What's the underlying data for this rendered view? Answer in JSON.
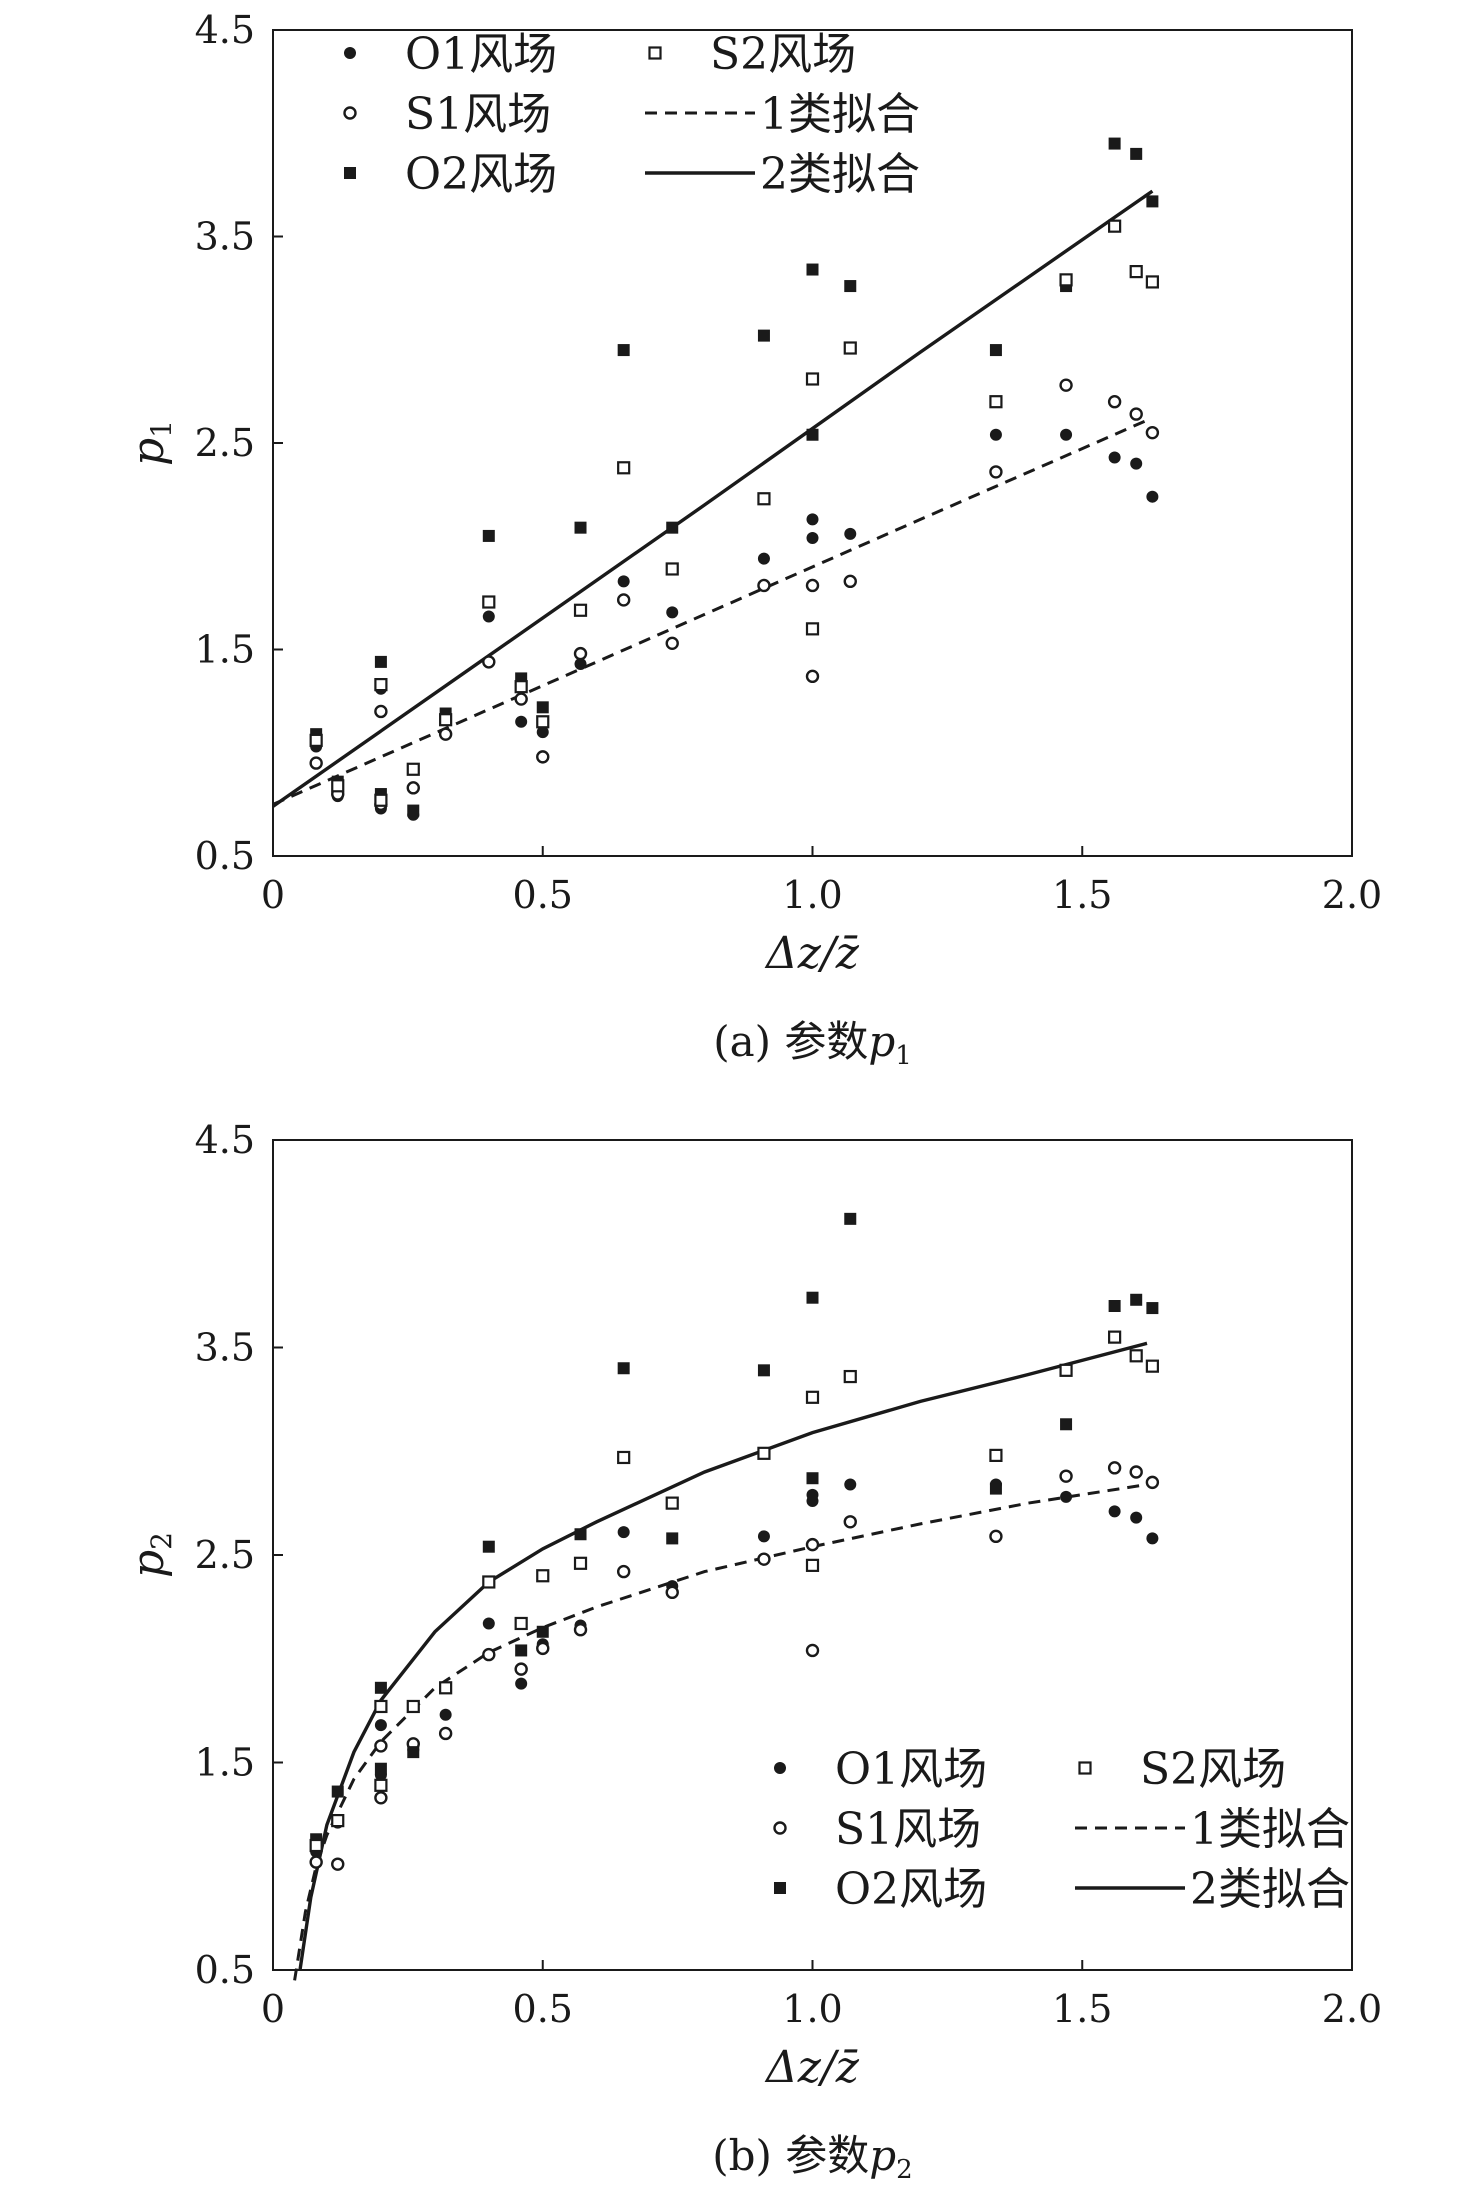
{
  "legend_labels": {
    "o1": "O1风场",
    "s1": "S1风场",
    "o2": "O2风场",
    "s2": "S2风场",
    "fit1": "1类拟合",
    "fit2": "2类拟合"
  },
  "chart_data": [
    {
      "type": "scatter",
      "caption": "(a) 参数",
      "caption_var": "p",
      "caption_sub": "1",
      "ylabel": "p",
      "ylabel_sub": "1",
      "xlabel": "Δz/z̄",
      "xlim": [
        0,
        2.0
      ],
      "ylim": [
        0.5,
        4.5
      ],
      "xticks": [
        "0",
        "0.5",
        "1.0",
        "1.5",
        "2.0"
      ],
      "yticks": [
        "0.5",
        "1.5",
        "2.5",
        "3.5",
        "4.5"
      ],
      "legend_position": "top-left",
      "series": [
        {
          "name": "O1风场",
          "marker": "filled-circle",
          "points": [
            [
              0.08,
              1.03
            ],
            [
              0.12,
              0.79
            ],
            [
              0.2,
              1.31
            ],
            [
              0.2,
              0.73
            ],
            [
              0.26,
              0.7
            ],
            [
              0.32,
              1.16
            ],
            [
              0.4,
              1.66
            ],
            [
              0.46,
              1.15
            ],
            [
              0.5,
              1.1
            ],
            [
              0.57,
              1.43
            ],
            [
              0.65,
              1.83
            ],
            [
              0.74,
              1.68
            ],
            [
              0.91,
              1.94
            ],
            [
              1.0,
              2.13
            ],
            [
              1.0,
              2.04
            ],
            [
              1.07,
              2.06
            ],
            [
              1.34,
              2.54
            ],
            [
              1.47,
              2.54
            ],
            [
              1.56,
              2.43
            ],
            [
              1.6,
              2.4
            ],
            [
              1.63,
              2.24
            ]
          ]
        },
        {
          "name": "S1风场",
          "marker": "open-circle",
          "points": [
            [
              0.08,
              0.95
            ],
            [
              0.12,
              0.8
            ],
            [
              0.2,
              1.2
            ],
            [
              0.2,
              0.75
            ],
            [
              0.26,
              0.83
            ],
            [
              0.32,
              1.09
            ],
            [
              0.4,
              1.44
            ],
            [
              0.46,
              1.26
            ],
            [
              0.5,
              0.98
            ],
            [
              0.57,
              1.48
            ],
            [
              0.65,
              1.74
            ],
            [
              0.74,
              1.53
            ],
            [
              0.91,
              1.81
            ],
            [
              1.0,
              1.81
            ],
            [
              1.0,
              1.37
            ],
            [
              1.07,
              1.83
            ],
            [
              1.34,
              2.36
            ],
            [
              1.47,
              2.78
            ],
            [
              1.56,
              2.7
            ],
            [
              1.6,
              2.64
            ],
            [
              1.63,
              2.55
            ]
          ]
        },
        {
          "name": "O2风场",
          "marker": "filled-square",
          "points": [
            [
              0.08,
              1.09
            ],
            [
              0.12,
              0.86
            ],
            [
              0.2,
              1.44
            ],
            [
              0.2,
              0.8
            ],
            [
              0.26,
              0.72
            ],
            [
              0.32,
              1.19
            ],
            [
              0.4,
              2.05
            ],
            [
              0.46,
              1.36
            ],
            [
              0.5,
              1.22
            ],
            [
              0.57,
              2.09
            ],
            [
              0.65,
              2.95
            ],
            [
              0.74,
              2.09
            ],
            [
              0.91,
              3.02
            ],
            [
              1.0,
              3.34
            ],
            [
              1.0,
              2.54
            ],
            [
              1.07,
              3.26
            ],
            [
              1.34,
              2.95
            ],
            [
              1.47,
              3.26
            ],
            [
              1.56,
              3.95
            ],
            [
              1.6,
              3.9
            ],
            [
              1.63,
              3.67
            ]
          ]
        },
        {
          "name": "S2风场",
          "marker": "open-square",
          "points": [
            [
              0.08,
              1.06
            ],
            [
              0.12,
              0.84
            ],
            [
              0.2,
              1.33
            ],
            [
              0.2,
              0.77
            ],
            [
              0.26,
              0.92
            ],
            [
              0.32,
              1.16
            ],
            [
              0.4,
              1.73
            ],
            [
              0.46,
              1.32
            ],
            [
              0.5,
              1.15
            ],
            [
              0.57,
              1.69
            ],
            [
              0.65,
              2.38
            ],
            [
              0.74,
              1.89
            ],
            [
              0.91,
              2.23
            ],
            [
              1.0,
              2.81
            ],
            [
              1.0,
              1.6
            ],
            [
              1.07,
              2.96
            ],
            [
              1.34,
              2.7
            ],
            [
              1.47,
              3.29
            ],
            [
              1.56,
              3.55
            ],
            [
              1.6,
              3.33
            ],
            [
              1.63,
              3.28
            ]
          ]
        }
      ],
      "fits": [
        {
          "name": "1类拟合",
          "style": "dashed",
          "points": [
            [
              0.0,
              0.75
            ],
            [
              0.4,
              1.21
            ],
            [
              0.8,
              1.67
            ],
            [
              1.2,
              2.13
            ],
            [
              1.62,
              2.61
            ]
          ]
        },
        {
          "name": "2类拟合",
          "style": "solid",
          "points": [
            [
              0.0,
              0.74
            ],
            [
              0.4,
              1.47
            ],
            [
              0.8,
              2.2
            ],
            [
              1.2,
              2.94
            ],
            [
              1.63,
              3.72
            ]
          ]
        }
      ]
    },
    {
      "type": "scatter",
      "caption": "(b) 参数",
      "caption_var": "p",
      "caption_sub": "2",
      "ylabel": "p",
      "ylabel_sub": "2",
      "xlabel": "Δz/z̄",
      "xlim": [
        0,
        2.0
      ],
      "ylim": [
        0.5,
        4.5
      ],
      "xticks": [
        "0",
        "0.5",
        "1.0",
        "1.5",
        "2.0"
      ],
      "yticks": [
        "0.5",
        "1.5",
        "2.5",
        "3.5",
        "4.5"
      ],
      "legend_position": "bottom-right",
      "series": [
        {
          "name": "O1风场",
          "marker": "filled-circle",
          "points": [
            [
              0.08,
              1.07
            ],
            [
              0.12,
              1.21
            ],
            [
              0.2,
              1.68
            ],
            [
              0.2,
              1.44
            ],
            [
              0.26,
              1.56
            ],
            [
              0.32,
              1.73
            ],
            [
              0.4,
              2.17
            ],
            [
              0.46,
              1.88
            ],
            [
              0.5,
              2.07
            ],
            [
              0.57,
              2.16
            ],
            [
              0.65,
              2.61
            ],
            [
              0.74,
              2.35
            ],
            [
              0.91,
              2.59
            ],
            [
              1.0,
              2.76
            ],
            [
              1.0,
              2.79
            ],
            [
              1.07,
              2.84
            ],
            [
              1.34,
              2.84
            ],
            [
              1.47,
              2.78
            ],
            [
              1.56,
              2.71
            ],
            [
              1.6,
              2.68
            ],
            [
              1.63,
              2.58
            ]
          ]
        },
        {
          "name": "S1风场",
          "marker": "open-circle",
          "points": [
            [
              0.08,
              1.02
            ],
            [
              0.12,
              1.01
            ],
            [
              0.2,
              1.58
            ],
            [
              0.2,
              1.33
            ],
            [
              0.26,
              1.59
            ],
            [
              0.32,
              1.64
            ],
            [
              0.4,
              2.02
            ],
            [
              0.46,
              1.95
            ],
            [
              0.5,
              2.05
            ],
            [
              0.57,
              2.14
            ],
            [
              0.65,
              2.42
            ],
            [
              0.74,
              2.32
            ],
            [
              0.91,
              2.48
            ],
            [
              1.0,
              2.55
            ],
            [
              1.0,
              2.04
            ],
            [
              1.07,
              2.66
            ],
            [
              1.34,
              2.59
            ],
            [
              1.47,
              2.88
            ],
            [
              1.56,
              2.92
            ],
            [
              1.6,
              2.9
            ],
            [
              1.63,
              2.85
            ]
          ]
        },
        {
          "name": "O2风场",
          "marker": "filled-square",
          "points": [
            [
              0.08,
              1.13
            ],
            [
              0.12,
              1.36
            ],
            [
              0.2,
              1.86
            ],
            [
              0.2,
              1.47
            ],
            [
              0.26,
              1.55
            ],
            [
              0.32,
              1.86
            ],
            [
              0.4,
              2.54
            ],
            [
              0.46,
              2.04
            ],
            [
              0.5,
              2.13
            ],
            [
              0.57,
              2.6
            ],
            [
              0.65,
              3.4
            ],
            [
              0.74,
              2.58
            ],
            [
              0.91,
              3.39
            ],
            [
              1.0,
              3.74
            ],
            [
              1.0,
              2.87
            ],
            [
              1.07,
              4.12
            ],
            [
              1.34,
              2.82
            ],
            [
              1.47,
              3.13
            ],
            [
              1.56,
              3.7
            ],
            [
              1.6,
              3.73
            ],
            [
              1.63,
              3.69
            ]
          ]
        },
        {
          "name": "S2风场",
          "marker": "open-square",
          "points": [
            [
              0.08,
              1.1
            ],
            [
              0.12,
              1.22
            ],
            [
              0.2,
              1.77
            ],
            [
              0.2,
              1.39
            ],
            [
              0.26,
              1.77
            ],
            [
              0.32,
              1.86
            ],
            [
              0.4,
              2.37
            ],
            [
              0.46,
              2.17
            ],
            [
              0.5,
              2.4
            ],
            [
              0.57,
              2.46
            ],
            [
              0.65,
              2.97
            ],
            [
              0.74,
              2.75
            ],
            [
              0.91,
              2.99
            ],
            [
              1.0,
              3.26
            ],
            [
              1.0,
              2.45
            ],
            [
              1.07,
              3.36
            ],
            [
              1.34,
              2.98
            ],
            [
              1.47,
              3.39
            ],
            [
              1.56,
              3.55
            ],
            [
              1.6,
              3.46
            ],
            [
              1.63,
              3.41
            ]
          ]
        }
      ],
      "fits": [
        {
          "name": "1类拟合",
          "style": "dashed",
          "points": [
            [
              0.04,
              0.45
            ],
            [
              0.06,
              0.78
            ],
            [
              0.08,
              1.0
            ],
            [
              0.1,
              1.15
            ],
            [
              0.15,
              1.42
            ],
            [
              0.2,
              1.6
            ],
            [
              0.3,
              1.86
            ],
            [
              0.4,
              2.03
            ],
            [
              0.5,
              2.15
            ],
            [
              0.6,
              2.25
            ],
            [
              0.8,
              2.42
            ],
            [
              1.0,
              2.54
            ],
            [
              1.2,
              2.65
            ],
            [
              1.4,
              2.75
            ],
            [
              1.62,
              2.84
            ]
          ]
        },
        {
          "name": "2类拟合",
          "style": "solid",
          "points": [
            [
              0.05,
              0.5
            ],
            [
              0.07,
              0.85
            ],
            [
              0.1,
              1.2
            ],
            [
              0.15,
              1.55
            ],
            [
              0.2,
              1.8
            ],
            [
              0.3,
              2.13
            ],
            [
              0.4,
              2.37
            ],
            [
              0.5,
              2.53
            ],
            [
              0.6,
              2.66
            ],
            [
              0.8,
              2.9
            ],
            [
              1.0,
              3.09
            ],
            [
              1.2,
              3.24
            ],
            [
              1.4,
              3.37
            ],
            [
              1.62,
              3.52
            ]
          ]
        }
      ]
    }
  ]
}
